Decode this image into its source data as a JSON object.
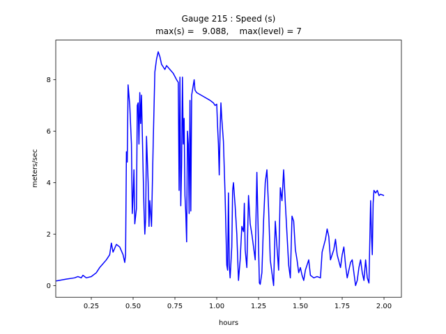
{
  "chart_data": {
    "type": "line",
    "title": "Gauge 215 : Speed (s)",
    "subtitle": "max(s) =   9.088,    max(level) = 7",
    "x_label": "hours",
    "y_label": "meters/sec",
    "xlim": [
      0.0375,
      2.104
    ],
    "ylim": [
      -0.454,
      9.542
    ],
    "xticks": [
      0.25,
      {
        "value": 0.5,
        "label": "0.50"
      },
      0.75,
      {
        "value": 1,
        "label": "1.00"
      },
      1.25,
      {
        "value": 1.5,
        "label": "1.50"
      },
      1.75,
      {
        "value": 2,
        "label": "2.00"
      }
    ],
    "yticks": [
      0,
      2,
      4,
      6,
      8
    ],
    "grid": false,
    "series": [
      {
        "color": "#0000ff",
        "x": [
          0.04,
          0.1,
          0.15,
          0.17,
          0.19,
          0.2,
          0.22,
          0.25,
          0.28,
          0.3,
          0.32,
          0.34,
          0.36,
          0.37,
          0.38,
          0.4,
          0.42,
          0.44,
          0.45,
          0.455,
          0.46,
          0.465,
          0.47,
          0.48,
          0.49,
          0.495,
          0.5,
          0.505,
          0.51,
          0.52,
          0.525,
          0.53,
          0.535,
          0.54,
          0.545,
          0.55,
          0.56,
          0.565,
          0.57,
          0.575,
          0.58,
          0.59,
          0.595,
          0.6,
          0.61,
          0.62,
          0.63,
          0.64,
          0.65,
          0.66,
          0.67,
          0.68,
          0.69,
          0.7,
          0.72,
          0.74,
          0.76,
          0.77,
          0.775,
          0.78,
          0.785,
          0.79,
          0.795,
          0.8,
          0.805,
          0.81,
          0.815,
          0.82,
          0.825,
          0.83,
          0.835,
          0.84,
          0.845,
          0.85,
          0.86,
          0.865,
          0.87,
          0.88,
          0.92,
          0.96,
          0.98,
          0.99,
          1.0,
          1.005,
          1.01,
          1.015,
          1.02,
          1.025,
          1.03,
          1.04,
          1.05,
          1.06,
          1.065,
          1.07,
          1.075,
          1.08,
          1.09,
          1.095,
          1.1,
          1.11,
          1.12,
          1.13,
          1.14,
          1.15,
          1.16,
          1.165,
          1.17,
          1.18,
          1.19,
          1.2,
          1.21,
          1.22,
          1.23,
          1.24,
          1.25,
          1.255,
          1.26,
          1.27,
          1.28,
          1.29,
          1.3,
          1.31,
          1.32,
          1.33,
          1.34,
          1.35,
          1.36,
          1.37,
          1.38,
          1.39,
          1.4,
          1.41,
          1.42,
          1.43,
          1.44,
          1.45,
          1.46,
          1.47,
          1.48,
          1.49,
          1.5,
          1.51,
          1.52,
          1.53,
          1.55,
          1.56,
          1.58,
          1.6,
          1.62,
          1.63,
          1.65,
          1.66,
          1.67,
          1.68,
          1.7,
          1.71,
          1.72,
          1.74,
          1.75,
          1.76,
          1.77,
          1.78,
          1.79,
          1.8,
          1.81,
          1.82,
          1.83,
          1.84,
          1.85,
          1.86,
          1.87,
          1.88,
          1.89,
          1.9,
          1.91,
          1.92,
          1.925,
          1.93,
          1.935,
          1.94,
          1.95,
          1.96,
          1.97,
          1.98,
          2.0
        ],
        "values": [
          0.18,
          0.25,
          0.3,
          0.35,
          0.3,
          0.4,
          0.3,
          0.35,
          0.5,
          0.7,
          0.85,
          1.0,
          1.2,
          1.65,
          1.3,
          1.6,
          1.5,
          1.2,
          0.9,
          1.2,
          5.2,
          4.8,
          7.8,
          7.0,
          5.5,
          2.8,
          3.5,
          4.5,
          2.4,
          3.0,
          7.0,
          7.1,
          5.5,
          7.5,
          6.3,
          7.4,
          4.4,
          3.0,
          2.0,
          2.6,
          5.8,
          4.0,
          2.3,
          3.3,
          2.3,
          5.5,
          8.3,
          8.8,
          9.088,
          8.9,
          8.6,
          8.5,
          8.4,
          8.55,
          8.4,
          8.25,
          8.0,
          7.9,
          3.7,
          8.1,
          3.1,
          4.7,
          8.1,
          5.5,
          6.5,
          3.5,
          2.8,
          1.7,
          6.0,
          5.5,
          2.8,
          7.2,
          2.9,
          7.4,
          7.8,
          8.0,
          7.6,
          7.5,
          7.35,
          7.2,
          7.1,
          7.0,
          7.05,
          6.2,
          5.5,
          4.3,
          6.0,
          7.1,
          6.5,
          5.6,
          3.5,
          0.8,
          0.6,
          3.6,
          0.8,
          0.3,
          1.5,
          3.7,
          4.0,
          3.1,
          2.0,
          0.2,
          1.0,
          2.3,
          2.1,
          3.2,
          1.4,
          0.7,
          3.5,
          2.4,
          2.0,
          1.5,
          1.0,
          4.4,
          1.5,
          0.1,
          0.05,
          0.5,
          2.5,
          4.0,
          4.5,
          3.0,
          1.0,
          0.5,
          0.0,
          2.5,
          1.5,
          0.6,
          3.8,
          3.3,
          4.5,
          3.2,
          2.0,
          0.8,
          0.3,
          2.7,
          2.5,
          1.4,
          1.0,
          0.5,
          0.7,
          0.4,
          0.2,
          0.6,
          1.0,
          0.4,
          0.3,
          0.35,
          0.3,
          1.3,
          1.8,
          2.2,
          1.9,
          1.0,
          1.4,
          1.8,
          1.2,
          0.7,
          1.2,
          1.5,
          0.8,
          0.3,
          0.6,
          0.9,
          1.0,
          0.5,
          0.0,
          0.2,
          0.7,
          1.0,
          0.5,
          0.2,
          1.0,
          0.3,
          0.1,
          3.3,
          2.0,
          1.2,
          3.2,
          3.7,
          3.6,
          3.7,
          3.5,
          3.55,
          3.5
        ]
      }
    ]
  }
}
